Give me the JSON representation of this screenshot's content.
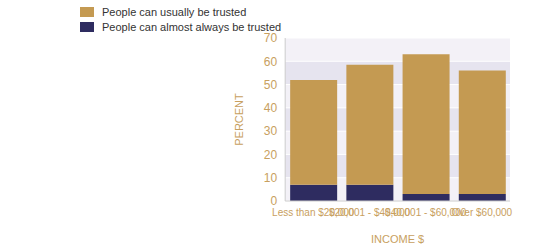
{
  "chart_data": {
    "type": "bar",
    "stacked": true,
    "categories": [
      "Less than $20,000",
      "$20,001 - $40,000",
      "$40,001 - $60,000",
      "Over $60,000"
    ],
    "series": [
      {
        "name": "People can usually be trusted",
        "color": "#c49a52",
        "values": [
          45,
          51.5,
          60,
          53
        ]
      },
      {
        "name": "People can almost always be trusted",
        "color": "#2e2c60",
        "values": [
          7,
          7,
          3,
          3
        ]
      }
    ],
    "x_label": "INCOME $",
    "y_label": "PERCENT",
    "ylim": [
      0,
      70
    ],
    "yticks": [
      0,
      10,
      20,
      30,
      40,
      50,
      60,
      70
    ],
    "grid": true,
    "legend": "top-left"
  }
}
